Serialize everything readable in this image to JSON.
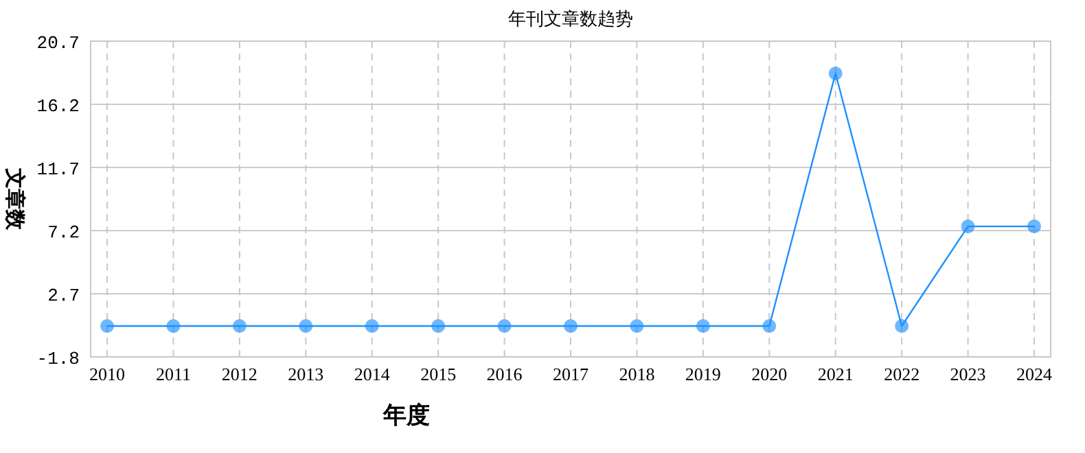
{
  "chart_data": {
    "type": "line",
    "title": "年刊文章数趋势",
    "xlabel": "年度",
    "ylabel": "文章数",
    "categories": [
      "2010",
      "2011",
      "2012",
      "2013",
      "2014",
      "2015",
      "2016",
      "2017",
      "2018",
      "2019",
      "2020",
      "2021",
      "2022",
      "2023",
      "2024"
    ],
    "series": [
      {
        "color": "#1e90ff",
        "values": [
          0.4,
          0.4,
          0.4,
          0.4,
          0.4,
          0.4,
          0.4,
          0.4,
          0.4,
          0.4,
          0.4,
          18.4,
          0.4,
          7.5,
          7.5
        ]
      }
    ],
    "ylim": [
      -1.8,
      20.7
    ],
    "yticks": [
      -1.8,
      2.7,
      7.2,
      11.7,
      16.2,
      20.7
    ],
    "grid": true,
    "marker": "circle",
    "line_style": "solid"
  }
}
